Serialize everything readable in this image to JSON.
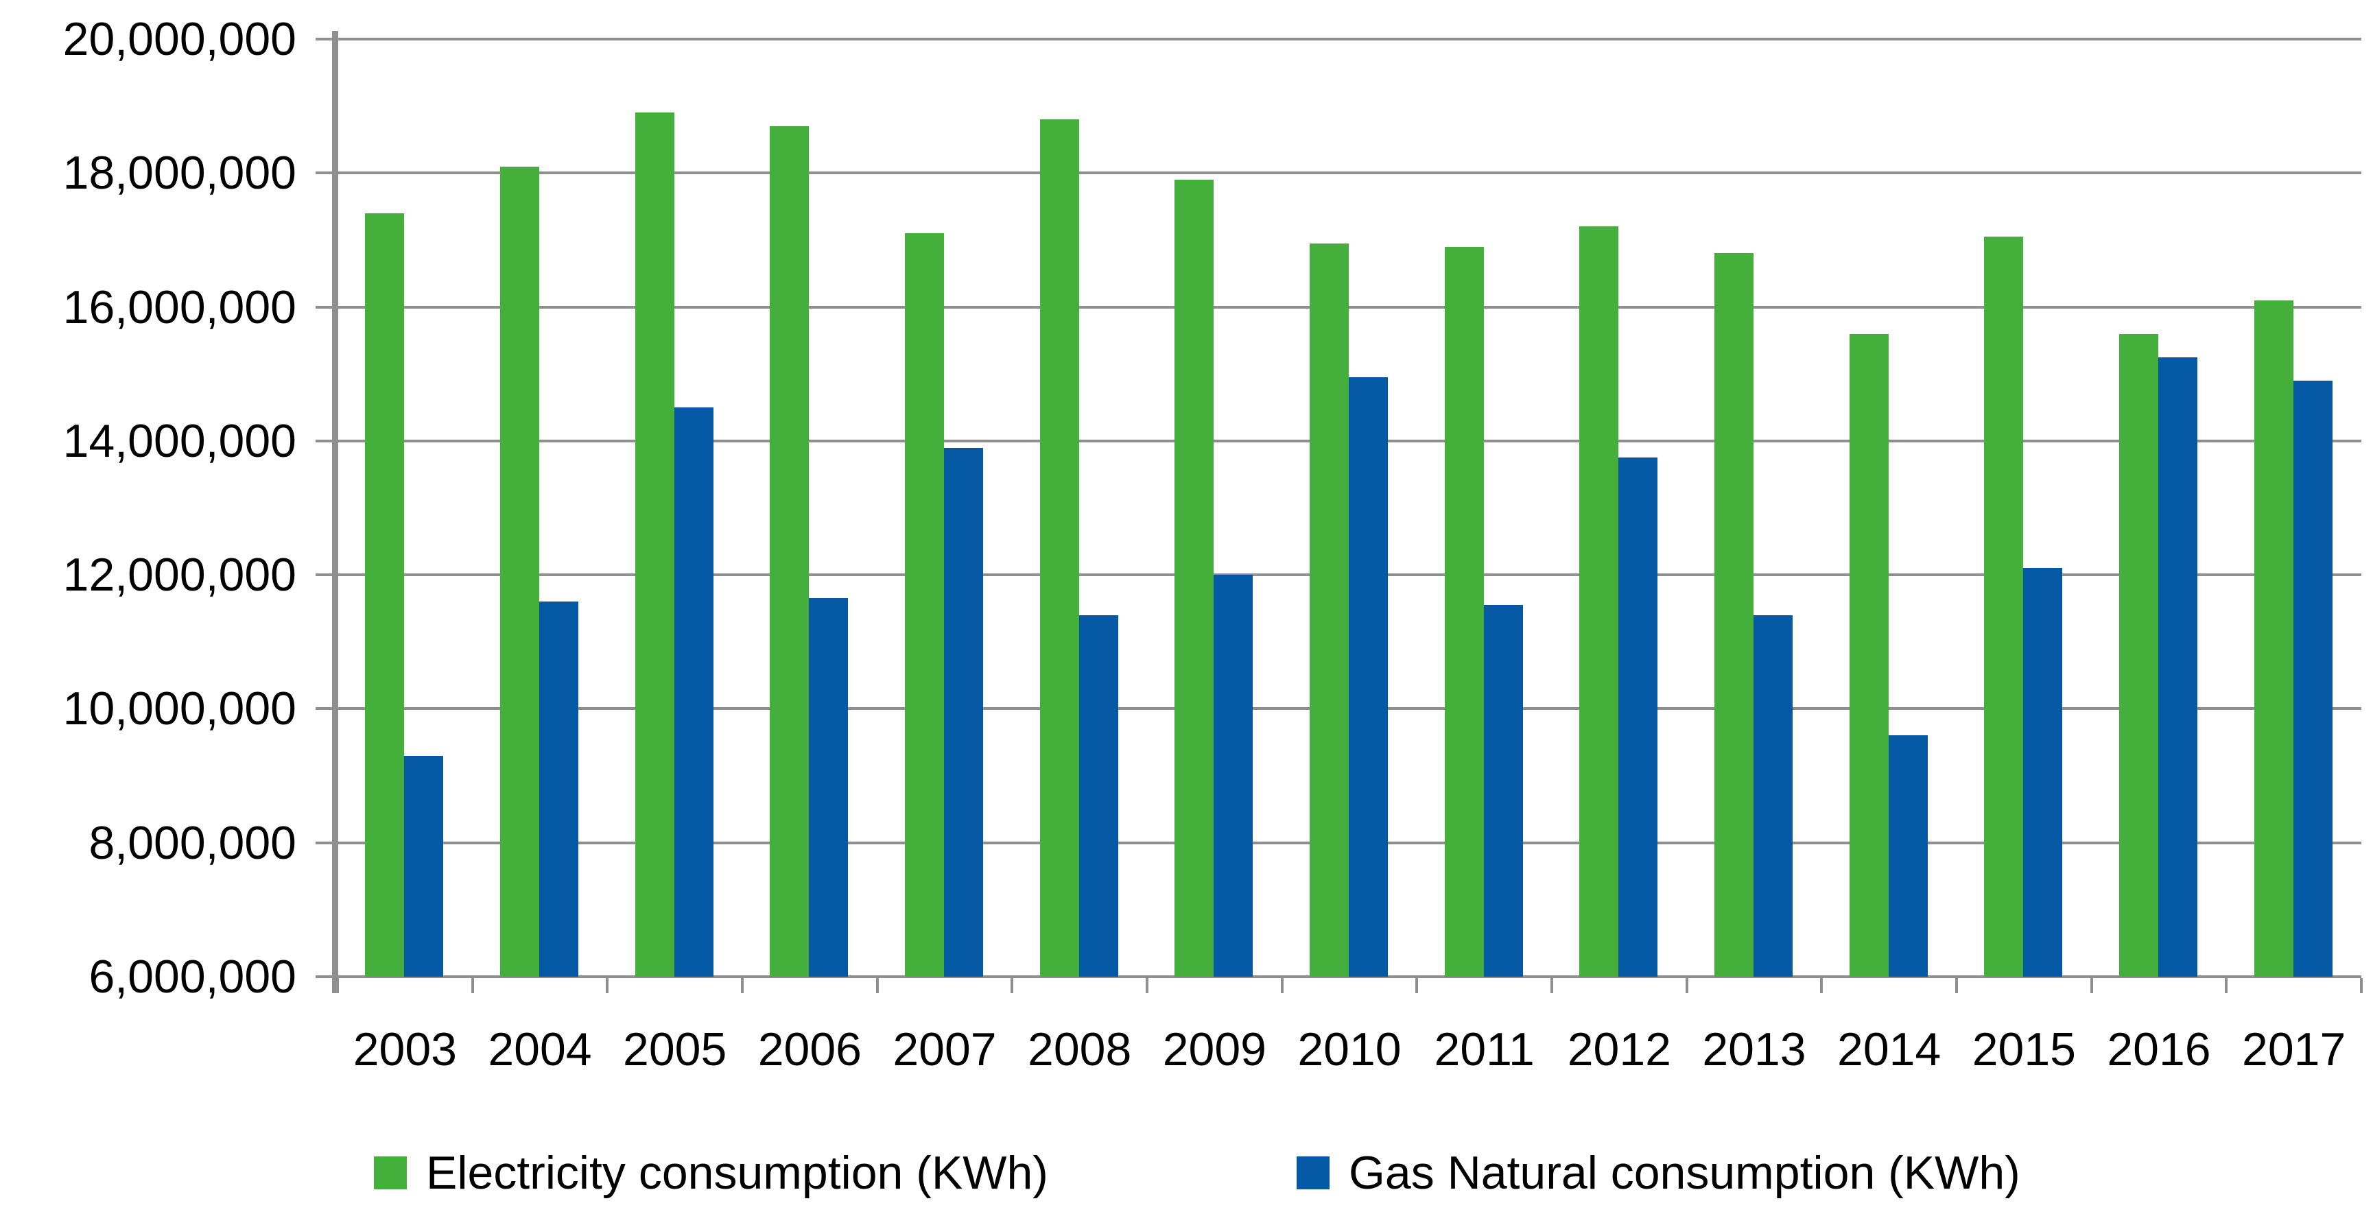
{
  "chart_data": {
    "type": "bar",
    "title": "",
    "xlabel": "",
    "ylabel": "",
    "categories": [
      "2003",
      "2004",
      "2005",
      "2006",
      "2007",
      "2008",
      "2009",
      "2010",
      "2011",
      "2012",
      "2013",
      "2014",
      "2015",
      "2016",
      "2017"
    ],
    "series": [
      {
        "name": "Electricity consumption (KWh)",
        "color": "#44AF3B",
        "values": [
          17400000,
          18100000,
          18900000,
          18700000,
          17100000,
          18800000,
          17900000,
          16950000,
          16900000,
          17200000,
          16800000,
          15600000,
          17050000,
          15600000,
          16100000
        ]
      },
      {
        "name": "Gas Natural consumption (KWh)",
        "color": "#0559A4",
        "values": [
          9300000,
          11600000,
          14500000,
          11650000,
          13900000,
          11400000,
          12000000,
          14950000,
          11550000,
          13750000,
          11400000,
          9600000,
          12100000,
          15250000,
          14900000
        ]
      }
    ],
    "ylim": [
      6000000,
      20000000
    ],
    "y_tick_interval": 2000000,
    "y_tick_labels": [
      "20,000,000",
      "18,000,000",
      "16,000,000",
      "14,000,000",
      "12,000,000",
      "10,000,000",
      "8,000,000",
      "6,000,000"
    ],
    "grid": "horizontal",
    "legend_position": "bottom",
    "gridline_color": "#8F8F8F",
    "axis_color": "#8F8F8F",
    "text_color": "#000000"
  }
}
